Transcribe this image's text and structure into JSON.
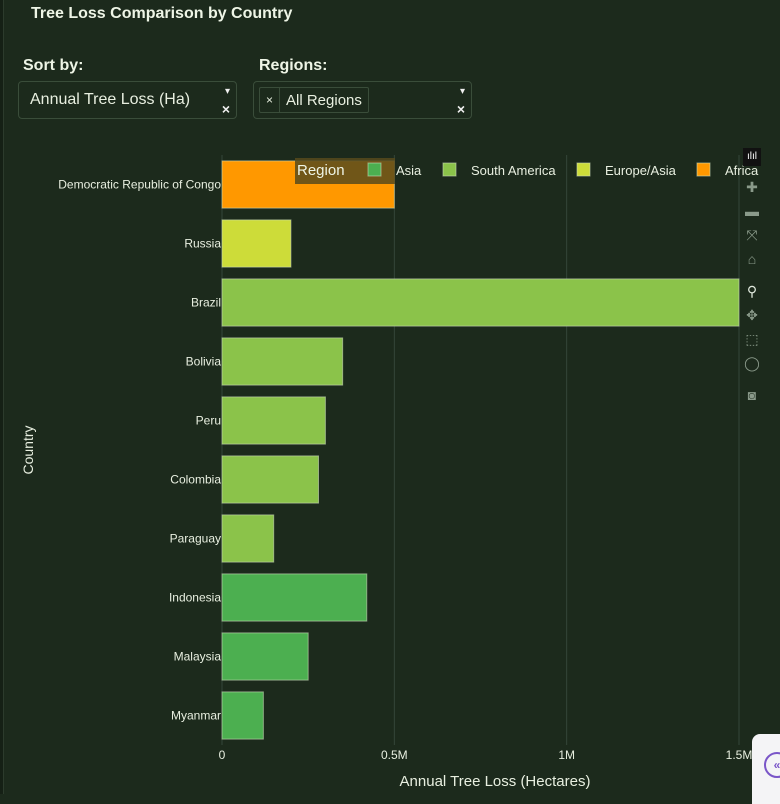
{
  "header": {
    "title": "Tree Loss Comparison by Country"
  },
  "controls": {
    "sort_label": "Sort by:",
    "sort_value": "Annual Tree Loss (Ha)",
    "regions_label": "Regions:",
    "regions_chip": "All Regions",
    "chip_remove": "×",
    "clear": "×",
    "caret": "▾"
  },
  "modebar": [
    "plotly-logo-icon",
    "zoom-in-icon",
    "zoom-out-icon",
    "autoscale-icon",
    "reset-axes-icon",
    "zoom-icon",
    "pan-icon",
    "box-select-icon",
    "lasso-select-icon",
    "camera-icon"
  ],
  "chart_data": {
    "type": "bar",
    "orientation": "horizontal",
    "title": "Tree Loss Comparison by Country",
    "xlabel": "Annual Tree Loss (Hectares)",
    "ylabel": "Country",
    "xlim": [
      0,
      1500000
    ],
    "xticks": [
      0,
      500000,
      1000000,
      1500000
    ],
    "xtick_labels": [
      "0",
      "0.5M",
      "1M",
      "1.5M"
    ],
    "grid": true,
    "legend": {
      "title": "Region",
      "placement": "top",
      "entries": [
        {
          "name": "Asia",
          "color": "#4caf50"
        },
        {
          "name": "South America",
          "color": "#8bc34a"
        },
        {
          "name": "Europe/Asia",
          "color": "#cddc39"
        },
        {
          "name": "Africa",
          "color": "#ff9800"
        }
      ]
    },
    "categories": [
      "Democratic Republic of Congo",
      "Russia",
      "Brazil",
      "Bolivia",
      "Peru",
      "Colombia",
      "Paraguay",
      "Indonesia",
      "Malaysia",
      "Myanmar"
    ],
    "values": [
      500000,
      200000,
      1500000,
      350000,
      300000,
      280000,
      150000,
      420000,
      250000,
      120000
    ],
    "regions": [
      "Africa",
      "Europe/Asia",
      "South America",
      "South America",
      "South America",
      "South America",
      "South America",
      "Asia",
      "Asia",
      "Asia"
    ]
  }
}
